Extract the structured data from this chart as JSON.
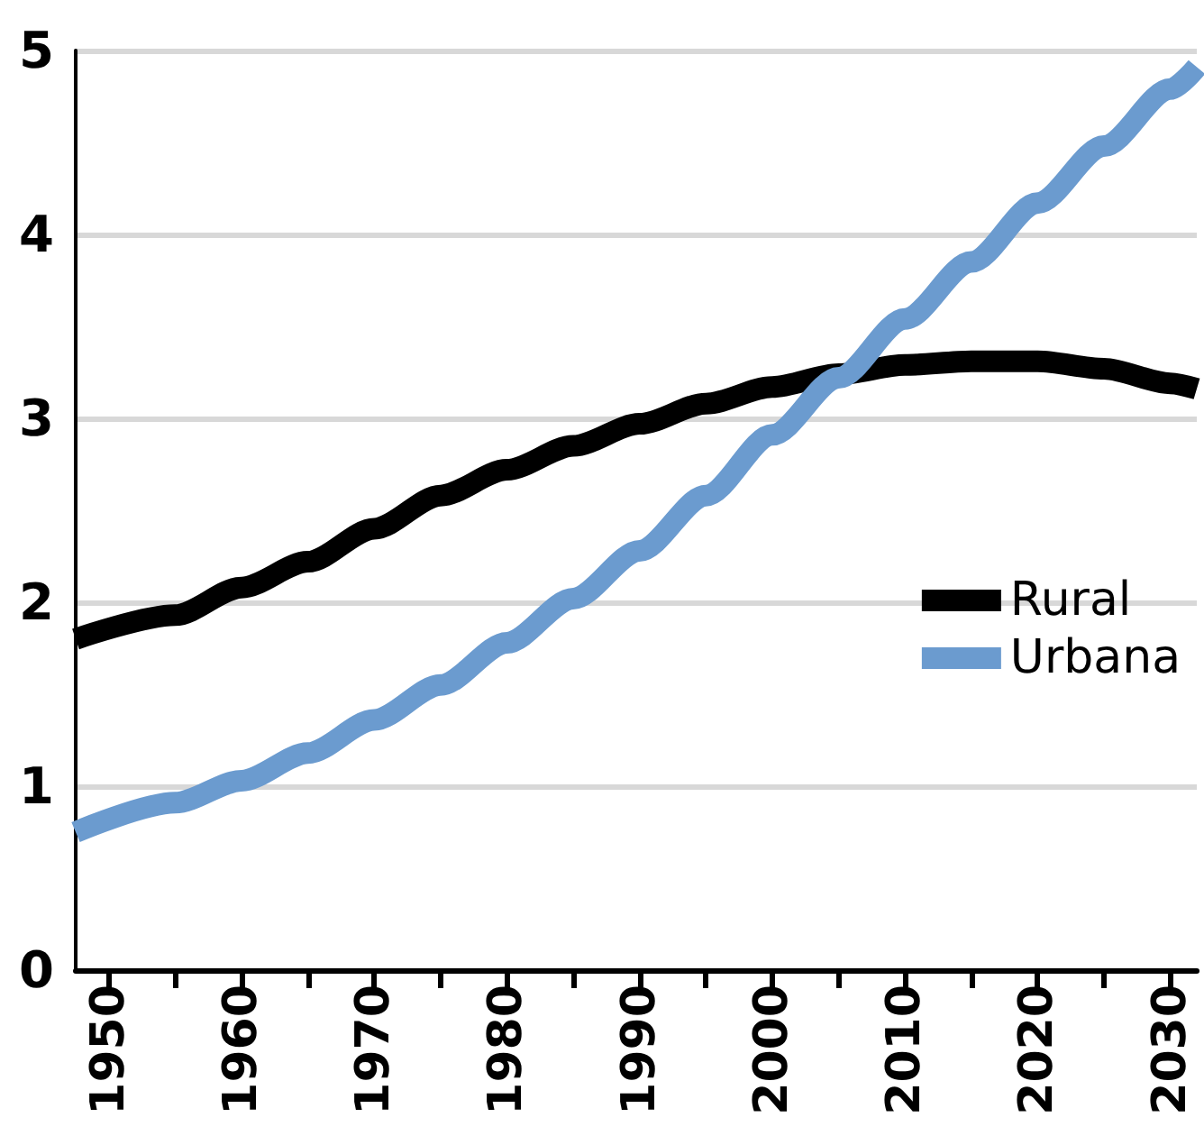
{
  "chart_data": {
    "type": "line",
    "x": [
      1947.5,
      1955,
      1960,
      1965,
      1970,
      1975,
      1980,
      1985,
      1990,
      1995,
      2000,
      2005,
      2010,
      2015,
      2020,
      2025,
      2030,
      2032
    ],
    "series": [
      {
        "name": "Rural",
        "color": "#000000",
        "values": [
          1.8,
          1.93,
          2.08,
          2.22,
          2.4,
          2.58,
          2.72,
          2.85,
          2.97,
          3.08,
          3.17,
          3.24,
          3.29,
          3.31,
          3.31,
          3.27,
          3.19,
          3.16
        ]
      },
      {
        "name": "Urbana",
        "color": "#6b9bcf",
        "values": [
          0.75,
          0.91,
          1.03,
          1.18,
          1.36,
          1.55,
          1.78,
          2.02,
          2.28,
          2.58,
          2.91,
          3.22,
          3.54,
          3.85,
          4.17,
          4.48,
          4.79,
          4.91
        ]
      }
    ],
    "xlim": [
      1947.5,
      2032
    ],
    "xticks": [
      {
        "value": 1950,
        "label": "1950"
      },
      {
        "value": 1955,
        "label": null
      },
      {
        "value": 1960,
        "label": "1960"
      },
      {
        "value": 1965,
        "label": null
      },
      {
        "value": 1970,
        "label": "1970"
      },
      {
        "value": 1975,
        "label": null
      },
      {
        "value": 1980,
        "label": "1980"
      },
      {
        "value": 1985,
        "label": null
      },
      {
        "value": 1990,
        "label": "1990"
      },
      {
        "value": 1995,
        "label": null
      },
      {
        "value": 2000,
        "label": "2000"
      },
      {
        "value": 2005,
        "label": null
      },
      {
        "value": 2010,
        "label": "2010"
      },
      {
        "value": 2015,
        "label": null
      },
      {
        "value": 2020,
        "label": "2020"
      },
      {
        "value": 2025,
        "label": null
      },
      {
        "value": 2030,
        "label": "2030"
      }
    ],
    "ylim": [
      0,
      5
    ],
    "yticks": [
      0,
      1,
      2,
      3,
      4,
      5
    ],
    "grid": "y",
    "legend": "right",
    "marker": "none",
    "line_style": "solid"
  }
}
